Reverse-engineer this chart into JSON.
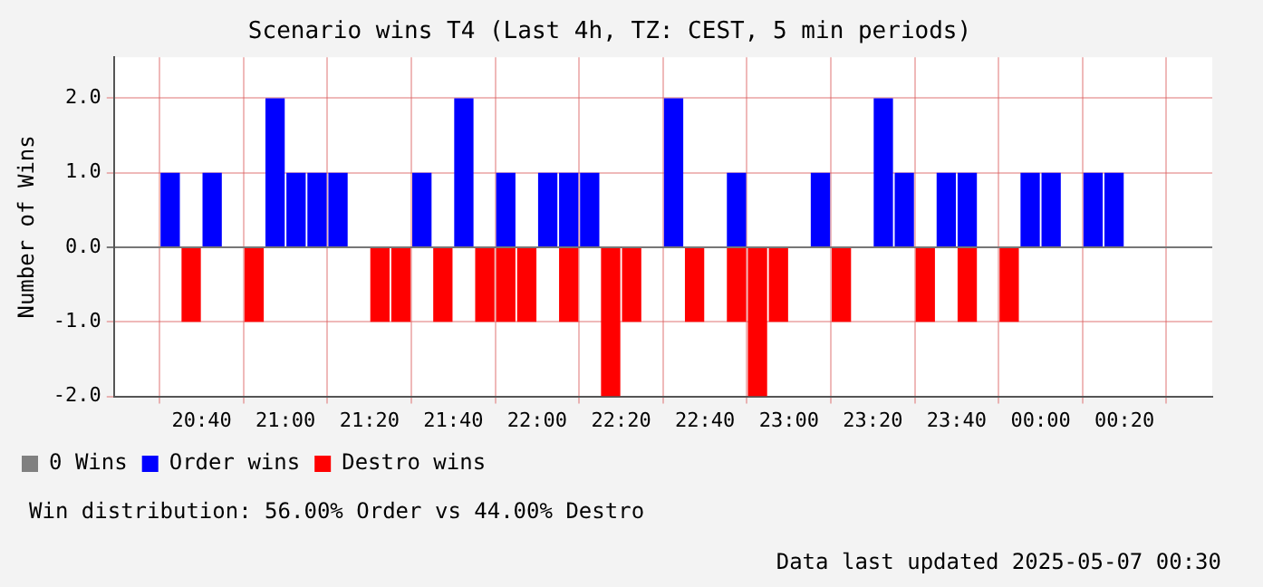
{
  "chart_data": {
    "type": "bar",
    "title": "Scenario wins T4 (Last 4h, TZ: CEST, 5 min periods)",
    "ylabel": "Number of Wins",
    "x": [
      "2025-05-06T20:30",
      "2025-05-06T20:35",
      "2025-05-06T20:40",
      "2025-05-06T20:45",
      "2025-05-06T20:50",
      "2025-05-06T20:55",
      "2025-05-06T21:00",
      "2025-05-06T21:05",
      "2025-05-06T21:10",
      "2025-05-06T21:15",
      "2025-05-06T21:20",
      "2025-05-06T21:25",
      "2025-05-06T21:30",
      "2025-05-06T21:35",
      "2025-05-06T21:40",
      "2025-05-06T21:45",
      "2025-05-06T21:50",
      "2025-05-06T21:55",
      "2025-05-06T22:00",
      "2025-05-06T22:05",
      "2025-05-06T22:10",
      "2025-05-06T22:15",
      "2025-05-06T22:20",
      "2025-05-06T22:25",
      "2025-05-06T22:30",
      "2025-05-06T22:35",
      "2025-05-06T22:40",
      "2025-05-06T22:45",
      "2025-05-06T22:50",
      "2025-05-06T22:55",
      "2025-05-06T23:00",
      "2025-05-06T23:05",
      "2025-05-06T23:10",
      "2025-05-06T23:15",
      "2025-05-06T23:20",
      "2025-05-06T23:25",
      "2025-05-06T23:30",
      "2025-05-06T23:35",
      "2025-05-06T23:40",
      "2025-05-06T23:45",
      "2025-05-06T23:50",
      "2025-05-06T23:55",
      "2025-05-07T00:00",
      "2025-05-07T00:05",
      "2025-05-07T00:10",
      "2025-05-07T00:15",
      "2025-05-07T00:20",
      "2025-05-07T00:25"
    ],
    "series": [
      {
        "name": "0 Wins",
        "color": "#808080",
        "values": [
          0,
          0,
          0,
          0,
          0,
          0,
          0,
          0,
          0,
          0,
          0,
          0,
          0,
          0,
          0,
          0,
          0,
          0,
          0,
          0,
          0,
          0,
          0,
          0,
          0,
          0,
          0,
          0,
          0,
          0,
          0,
          0,
          0,
          0,
          0,
          0,
          0,
          0,
          0,
          0,
          0,
          0,
          0,
          0,
          0,
          0,
          0,
          0
        ]
      },
      {
        "name": "Order wins",
        "color": "#0000ff",
        "values": [
          1,
          0,
          1,
          0,
          0,
          2,
          1,
          1,
          1,
          0,
          0,
          0,
          1,
          0,
          2,
          0,
          1,
          0,
          1,
          1,
          1,
          0,
          0,
          0,
          2,
          0,
          0,
          1,
          0,
          0,
          0,
          1,
          0,
          0,
          2,
          1,
          0,
          1,
          1,
          0,
          0,
          1,
          1,
          0,
          1,
          1,
          0,
          0
        ]
      },
      {
        "name": "Destro wins",
        "color": "#ff0000",
        "values": [
          0,
          -1,
          0,
          0,
          -1,
          0,
          0,
          0,
          0,
          0,
          -1,
          -1,
          0,
          -1,
          0,
          -1,
          -1,
          -1,
          0,
          -1,
          0,
          -2,
          -1,
          0,
          0,
          -1,
          0,
          -1,
          -2,
          -1,
          0,
          0,
          -1,
          0,
          0,
          0,
          -1,
          0,
          -1,
          0,
          -1,
          0,
          0,
          0,
          0,
          0,
          0,
          0
        ]
      }
    ],
    "xlim": [
      "2025-05-06T20:30",
      "2025-05-07T00:30"
    ],
    "xticks": [
      {
        "value": "2025-05-06T20:40",
        "label": "20:40"
      },
      {
        "value": "2025-05-06T21:00",
        "label": "21:00"
      },
      {
        "value": "2025-05-06T21:20",
        "label": "21:20"
      },
      {
        "value": "2025-05-06T21:40",
        "label": "21:40"
      },
      {
        "value": "2025-05-06T22:00",
        "label": "22:00"
      },
      {
        "value": "2025-05-06T22:20",
        "label": "22:20"
      },
      {
        "value": "2025-05-06T22:40",
        "label": "22:40"
      },
      {
        "value": "2025-05-06T23:00",
        "label": "23:00"
      },
      {
        "value": "2025-05-06T23:20",
        "label": "23:20"
      },
      {
        "value": "2025-05-06T23:40",
        "label": "23:40"
      },
      {
        "value": "2025-05-07T00:00",
        "label": "00:00"
      },
      {
        "value": "2025-05-07T00:20",
        "label": "00:20"
      }
    ],
    "ylim": [
      -2,
      2.55
    ],
    "yticks": [
      {
        "value": -2,
        "label": "-2.0"
      },
      {
        "value": -1,
        "label": "-1.0"
      },
      {
        "value": 0,
        "label": "0.0"
      },
      {
        "value": 1,
        "label": "1.0"
      },
      {
        "value": 2,
        "label": "2.0"
      }
    ],
    "grid": true,
    "legend": "bottom",
    "annotations": [
      "Win distribution: 56.00% Order vs 44.00% Destro",
      "Data last updated 2025-05-07 00:30"
    ]
  }
}
